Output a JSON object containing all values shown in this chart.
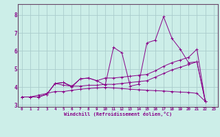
{
  "xlabel": "Windchill (Refroidissement éolien,°C)",
  "ylabel": "",
  "bg_color": "#cceee8",
  "grid_color": "#aacccc",
  "line_color": "#880088",
  "spine_color": "#664466",
  "xlim": [
    -0.5,
    23.5
  ],
  "ylim": [
    2.9,
    8.6
  ],
  "xticks": [
    0,
    1,
    2,
    3,
    4,
    5,
    6,
    7,
    8,
    9,
    10,
    11,
    12,
    13,
    14,
    15,
    16,
    17,
    18,
    19,
    20,
    21,
    22,
    23
  ],
  "yticks": [
    3,
    4,
    5,
    6,
    7,
    8
  ],
  "series": [
    [
      3.45,
      3.45,
      3.45,
      3.6,
      4.2,
      4.25,
      4.0,
      4.45,
      4.5,
      4.35,
      4.1,
      6.2,
      5.9,
      4.05,
      4.15,
      6.45,
      6.6,
      7.9,
      6.7,
      6.1,
      5.35,
      5.4,
      3.2
    ],
    [
      3.45,
      3.45,
      3.45,
      3.6,
      4.2,
      4.25,
      4.05,
      4.45,
      4.5,
      4.35,
      4.5,
      4.5,
      4.55,
      4.6,
      4.65,
      4.7,
      4.9,
      5.15,
      5.35,
      5.5,
      5.65,
      6.1,
      3.2
    ],
    [
      3.45,
      3.45,
      3.45,
      3.6,
      4.2,
      4.1,
      4.05,
      4.05,
      4.1,
      4.1,
      4.15,
      4.15,
      4.2,
      4.25,
      4.3,
      4.35,
      4.55,
      4.75,
      4.95,
      5.1,
      5.25,
      5.4,
      3.2
    ],
    [
      3.45,
      3.45,
      3.55,
      3.65,
      3.75,
      3.75,
      3.82,
      3.88,
      3.92,
      3.95,
      3.98,
      3.95,
      3.92,
      3.88,
      3.85,
      3.82,
      3.8,
      3.78,
      3.75,
      3.72,
      3.7,
      3.65,
      3.2
    ]
  ]
}
